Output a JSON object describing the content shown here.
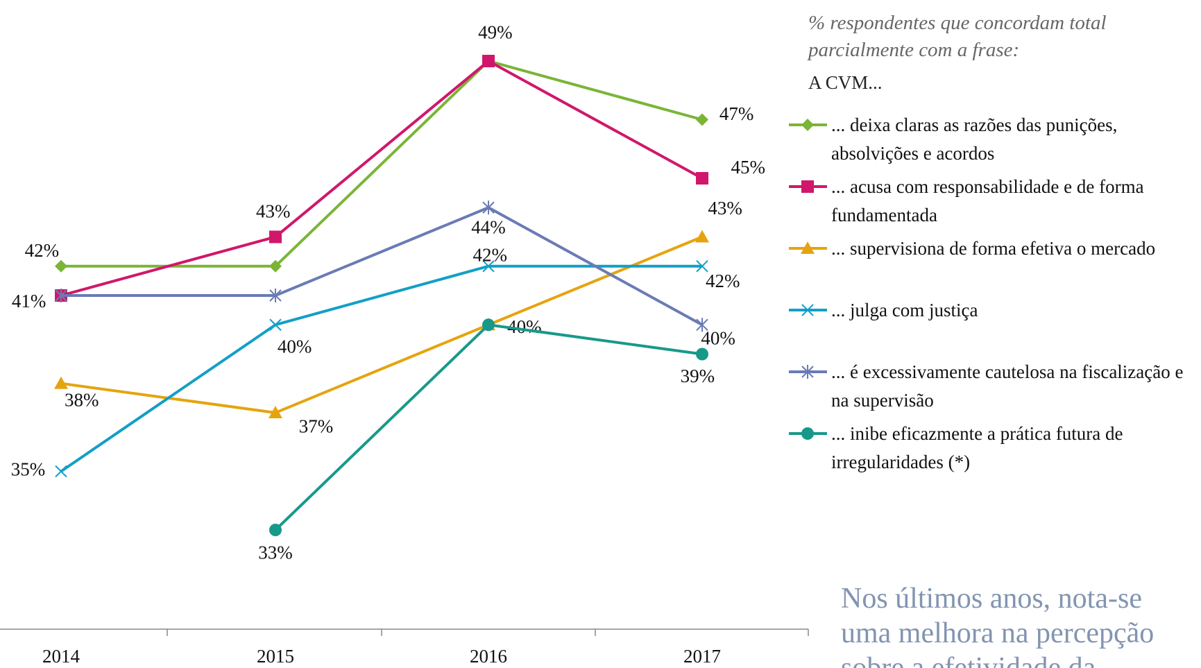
{
  "chart_data": {
    "type": "line",
    "legend_title": [
      "% respondentes que concordam total",
      "parcialmente com a frase:"
    ],
    "legend_subtitle": "A CVM...",
    "annotation": [
      "Nos últimos anos, nota-se",
      "uma melhora na percepção",
      "sobre a efetividade da"
    ],
    "categories": [
      "2014",
      "2015",
      "2016",
      "2017"
    ],
    "series": [
      {
        "name": "... deixa claras as razões das punições, absolvições e acordos",
        "color": "#7ab536",
        "marker": "diamond",
        "values": [
          42,
          42,
          49,
          47
        ],
        "value_labels": [
          "42%",
          null,
          null,
          "47%"
        ]
      },
      {
        "name": "... acusa com responsabilidade e de forma fundamentada",
        "color": "#d0176b",
        "marker": "square",
        "values": [
          41,
          43,
          49,
          45
        ],
        "value_labels": [
          "41%",
          "43%",
          "49%",
          "45%"
        ]
      },
      {
        "name": "... supervisiona de forma efetiva o mercado",
        "color": "#e5a40f",
        "marker": "triangle",
        "values": [
          38,
          37,
          40,
          43
        ],
        "value_labels": [
          "38%",
          "37%",
          "40%",
          "43%"
        ]
      },
      {
        "name": "... julga com justiça",
        "color": "#139fc6",
        "marker": "x",
        "values": [
          35,
          40,
          42,
          42
        ],
        "value_labels": [
          "35%",
          "40%",
          "42%",
          "42%"
        ]
      },
      {
        "name": "... é excessivamente cautelosa na fiscalização e na supervisão",
        "color": "#6a7bb5",
        "marker": "star",
        "values": [
          41,
          41,
          44,
          40
        ],
        "value_labels": [
          null,
          null,
          "44%",
          "40%"
        ]
      },
      {
        "name": "... inibe eficazmente a prática futura de irregularidades (*)",
        "color": "#17998a",
        "marker": "circle",
        "values": [
          null,
          33,
          40,
          39
        ],
        "value_labels": [
          null,
          "33%",
          null,
          "39%"
        ]
      }
    ]
  }
}
